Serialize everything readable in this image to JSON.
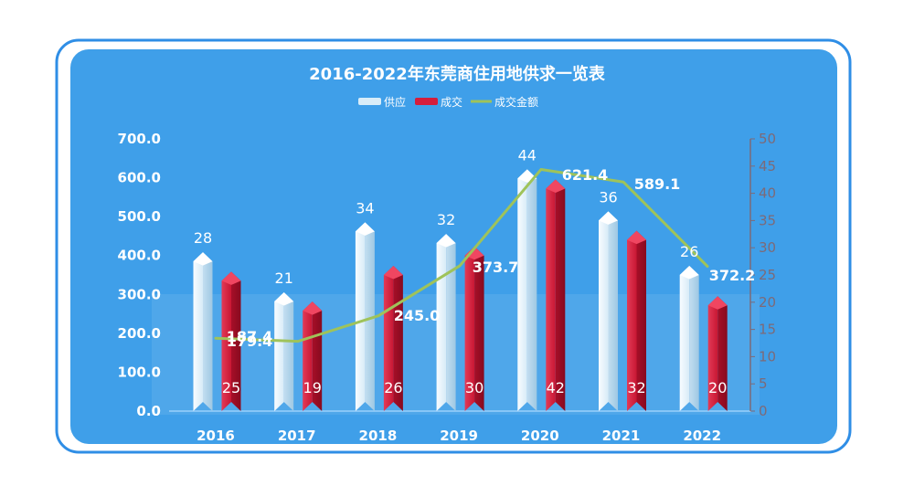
{
  "chart_data": {
    "type": "bar",
    "title": "2016-2022年东莞商住用地供求一览表",
    "categories": [
      "2016",
      "2017",
      "2018",
      "2019",
      "2020",
      "2021",
      "2022"
    ],
    "series": [
      {
        "name": "供应",
        "axis": "left",
        "values": [
          385,
          282,
          462,
          432,
          598,
          490,
          350
        ],
        "labels": [
          28,
          21,
          34,
          32,
          44,
          36,
          26
        ]
      },
      {
        "name": "成交",
        "axis": "left",
        "values": [
          335,
          258,
          350,
          400,
          572,
          440,
          272
        ],
        "labels": [
          25,
          19,
          26,
          30,
          42,
          32,
          20
        ]
      },
      {
        "name": "成交金额",
        "type": "line",
        "axis": "left",
        "values": [
          187.4,
          179.4,
          245.0,
          373.7,
          621.4,
          589.1,
          372.2
        ]
      }
    ],
    "y_left": {
      "range": [
        0,
        700
      ],
      "ticks": [
        "0.0",
        "100.0",
        "200.0",
        "300.0",
        "400.0",
        "500.0",
        "600.0",
        "700.0"
      ]
    },
    "y_right": {
      "range": [
        0,
        50
      ],
      "ticks": [
        "0",
        "5",
        "10",
        "15",
        "20",
        "25",
        "30",
        "35",
        "40",
        "45",
        "50"
      ]
    },
    "legend_position": "top-center",
    "grid": false,
    "colors": {
      "frame": "#2f8ee6",
      "panel": "#3f9fe9",
      "supply": "#d8ecf8",
      "deal": "#d51d3c",
      "amount_line": "#9fc35a",
      "text": "#ffffff",
      "right_axis": "#7d6a78"
    }
  }
}
